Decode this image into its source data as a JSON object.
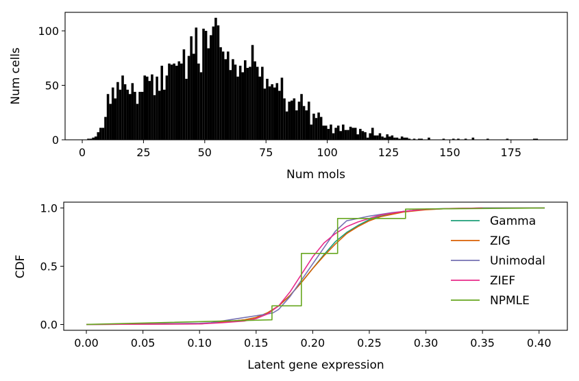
{
  "chart_data": [
    {
      "type": "bar",
      "subtype": "histogram",
      "xlabel": "Num mols",
      "ylabel": "Num cells",
      "xlim": [
        -7,
        198
      ],
      "ylim": [
        0,
        117
      ],
      "xticks": [
        0,
        25,
        50,
        75,
        100,
        125,
        150,
        175
      ],
      "yticks": [
        0,
        50,
        100
      ],
      "bin_width": 1,
      "bin_start": 0,
      "bar_color": "#000000",
      "counts": [
        0,
        0,
        1,
        1,
        2,
        3,
        7,
        11,
        11,
        21,
        42,
        33,
        48,
        38,
        53,
        46,
        59,
        51,
        46,
        42,
        52,
        44,
        33,
        44,
        44,
        59,
        58,
        54,
        60,
        41,
        58,
        45,
        68,
        46,
        59,
        70,
        69,
        70,
        68,
        72,
        70,
        83,
        56,
        77,
        95,
        79,
        103,
        70,
        62,
        102,
        100,
        84,
        96,
        104,
        112,
        105,
        85,
        81,
        74,
        81,
        64,
        74,
        69,
        58,
        68,
        62,
        73,
        66,
        67,
        87,
        72,
        67,
        58,
        67,
        47,
        56,
        49,
        51,
        48,
        52,
        45,
        57,
        38,
        26,
        35,
        36,
        38,
        27,
        35,
        42,
        31,
        27,
        35,
        14,
        24,
        20,
        25,
        21,
        13,
        13,
        10,
        14,
        6,
        11,
        13,
        8,
        14,
        9,
        9,
        12,
        11,
        11,
        5,
        10,
        8,
        7,
        2,
        6,
        11,
        4,
        4,
        6,
        3,
        2,
        5,
        3,
        4,
        2,
        2,
        1,
        3,
        2,
        2,
        1,
        0,
        1,
        0,
        1,
        1,
        0,
        0,
        2,
        0,
        0,
        0,
        0,
        0,
        1,
        0,
        0,
        0,
        1,
        0,
        1,
        0,
        0,
        1,
        0,
        0,
        2,
        0,
        0,
        0,
        0,
        0,
        1,
        0,
        0,
        0,
        0,
        0,
        0,
        0,
        1,
        0,
        0,
        0,
        0,
        0,
        0,
        0,
        0,
        0,
        0,
        1,
        1,
        0,
        0,
        0,
        0,
        0,
        0,
        0,
        0,
        0,
        0
      ]
    },
    {
      "type": "line",
      "xlabel": "Latent gene expression",
      "ylabel": "CDF",
      "xlim": [
        -0.02,
        0.425
      ],
      "ylim": [
        -0.05,
        1.05
      ],
      "xticks": [
        0.0,
        0.05,
        0.1,
        0.15,
        0.2,
        0.25,
        0.3,
        0.35,
        0.4
      ],
      "xtick_labels": [
        "0.00",
        "0.05",
        "0.10",
        "0.15",
        "0.20",
        "0.25",
        "0.30",
        "0.35",
        "0.40"
      ],
      "yticks": [
        0.0,
        0.5,
        1.0
      ],
      "ytick_labels": [
        "0.0",
        "0.5",
        "1.0"
      ],
      "legend_position": "right",
      "series": [
        {
          "name": "Gamma",
          "color": "#1b9e77",
          "x": [
            0.0,
            0.1,
            0.12,
            0.14,
            0.15,
            0.16,
            0.17,
            0.18,
            0.19,
            0.2,
            0.21,
            0.22,
            0.23,
            0.24,
            0.25,
            0.26,
            0.28,
            0.3,
            0.32,
            0.35,
            0.4,
            0.405
          ],
          "y": [
            0.0,
            0.005,
            0.02,
            0.04,
            0.06,
            0.1,
            0.16,
            0.25,
            0.36,
            0.48,
            0.6,
            0.71,
            0.79,
            0.85,
            0.9,
            0.93,
            0.97,
            0.99,
            0.995,
            1.0,
            1.0,
            1.0
          ]
        },
        {
          "name": "ZIG",
          "color": "#d95f02",
          "x": [
            0.0,
            0.1,
            0.12,
            0.14,
            0.15,
            0.16,
            0.17,
            0.18,
            0.19,
            0.2,
            0.21,
            0.22,
            0.23,
            0.24,
            0.25,
            0.26,
            0.28,
            0.3,
            0.32,
            0.35,
            0.4,
            0.405
          ],
          "y": [
            0.0,
            0.005,
            0.02,
            0.04,
            0.06,
            0.1,
            0.16,
            0.25,
            0.36,
            0.48,
            0.59,
            0.69,
            0.78,
            0.84,
            0.89,
            0.925,
            0.965,
            0.985,
            0.995,
            1.0,
            1.0,
            1.0
          ]
        },
        {
          "name": "Unimodal",
          "color": "#7570b3",
          "x": [
            0.0,
            0.1,
            0.11,
            0.12,
            0.13,
            0.14,
            0.15,
            0.16,
            0.165,
            0.17,
            0.18,
            0.19,
            0.2,
            0.21,
            0.22,
            0.23,
            0.25,
            0.27,
            0.3,
            0.35,
            0.405
          ],
          "y": [
            0.0,
            0.01,
            0.015,
            0.03,
            0.045,
            0.06,
            0.075,
            0.09,
            0.1,
            0.13,
            0.24,
            0.38,
            0.52,
            0.66,
            0.8,
            0.89,
            0.93,
            0.96,
            0.99,
            1.0,
            1.0
          ]
        },
        {
          "name": "ZIEF",
          "color": "#e7298a",
          "x": [
            0.0,
            0.1,
            0.12,
            0.14,
            0.15,
            0.16,
            0.17,
            0.18,
            0.19,
            0.2,
            0.21,
            0.22,
            0.23,
            0.24,
            0.26,
            0.28,
            0.3,
            0.35
          ],
          "y": [
            0.0,
            0.005,
            0.015,
            0.03,
            0.05,
            0.09,
            0.16,
            0.28,
            0.43,
            0.58,
            0.7,
            0.78,
            0.84,
            0.88,
            0.94,
            0.97,
            0.99,
            1.0
          ]
        },
        {
          "name": "NPMLE",
          "color": "#66a61e",
          "step": true,
          "x": [
            0.0,
            0.164,
            0.164,
            0.19,
            0.19,
            0.222,
            0.222,
            0.282,
            0.282,
            0.405
          ],
          "y": [
            0.0,
            0.04,
            0.16,
            0.16,
            0.61,
            0.61,
            0.91,
            0.91,
            0.99,
            1.0
          ]
        }
      ]
    }
  ]
}
